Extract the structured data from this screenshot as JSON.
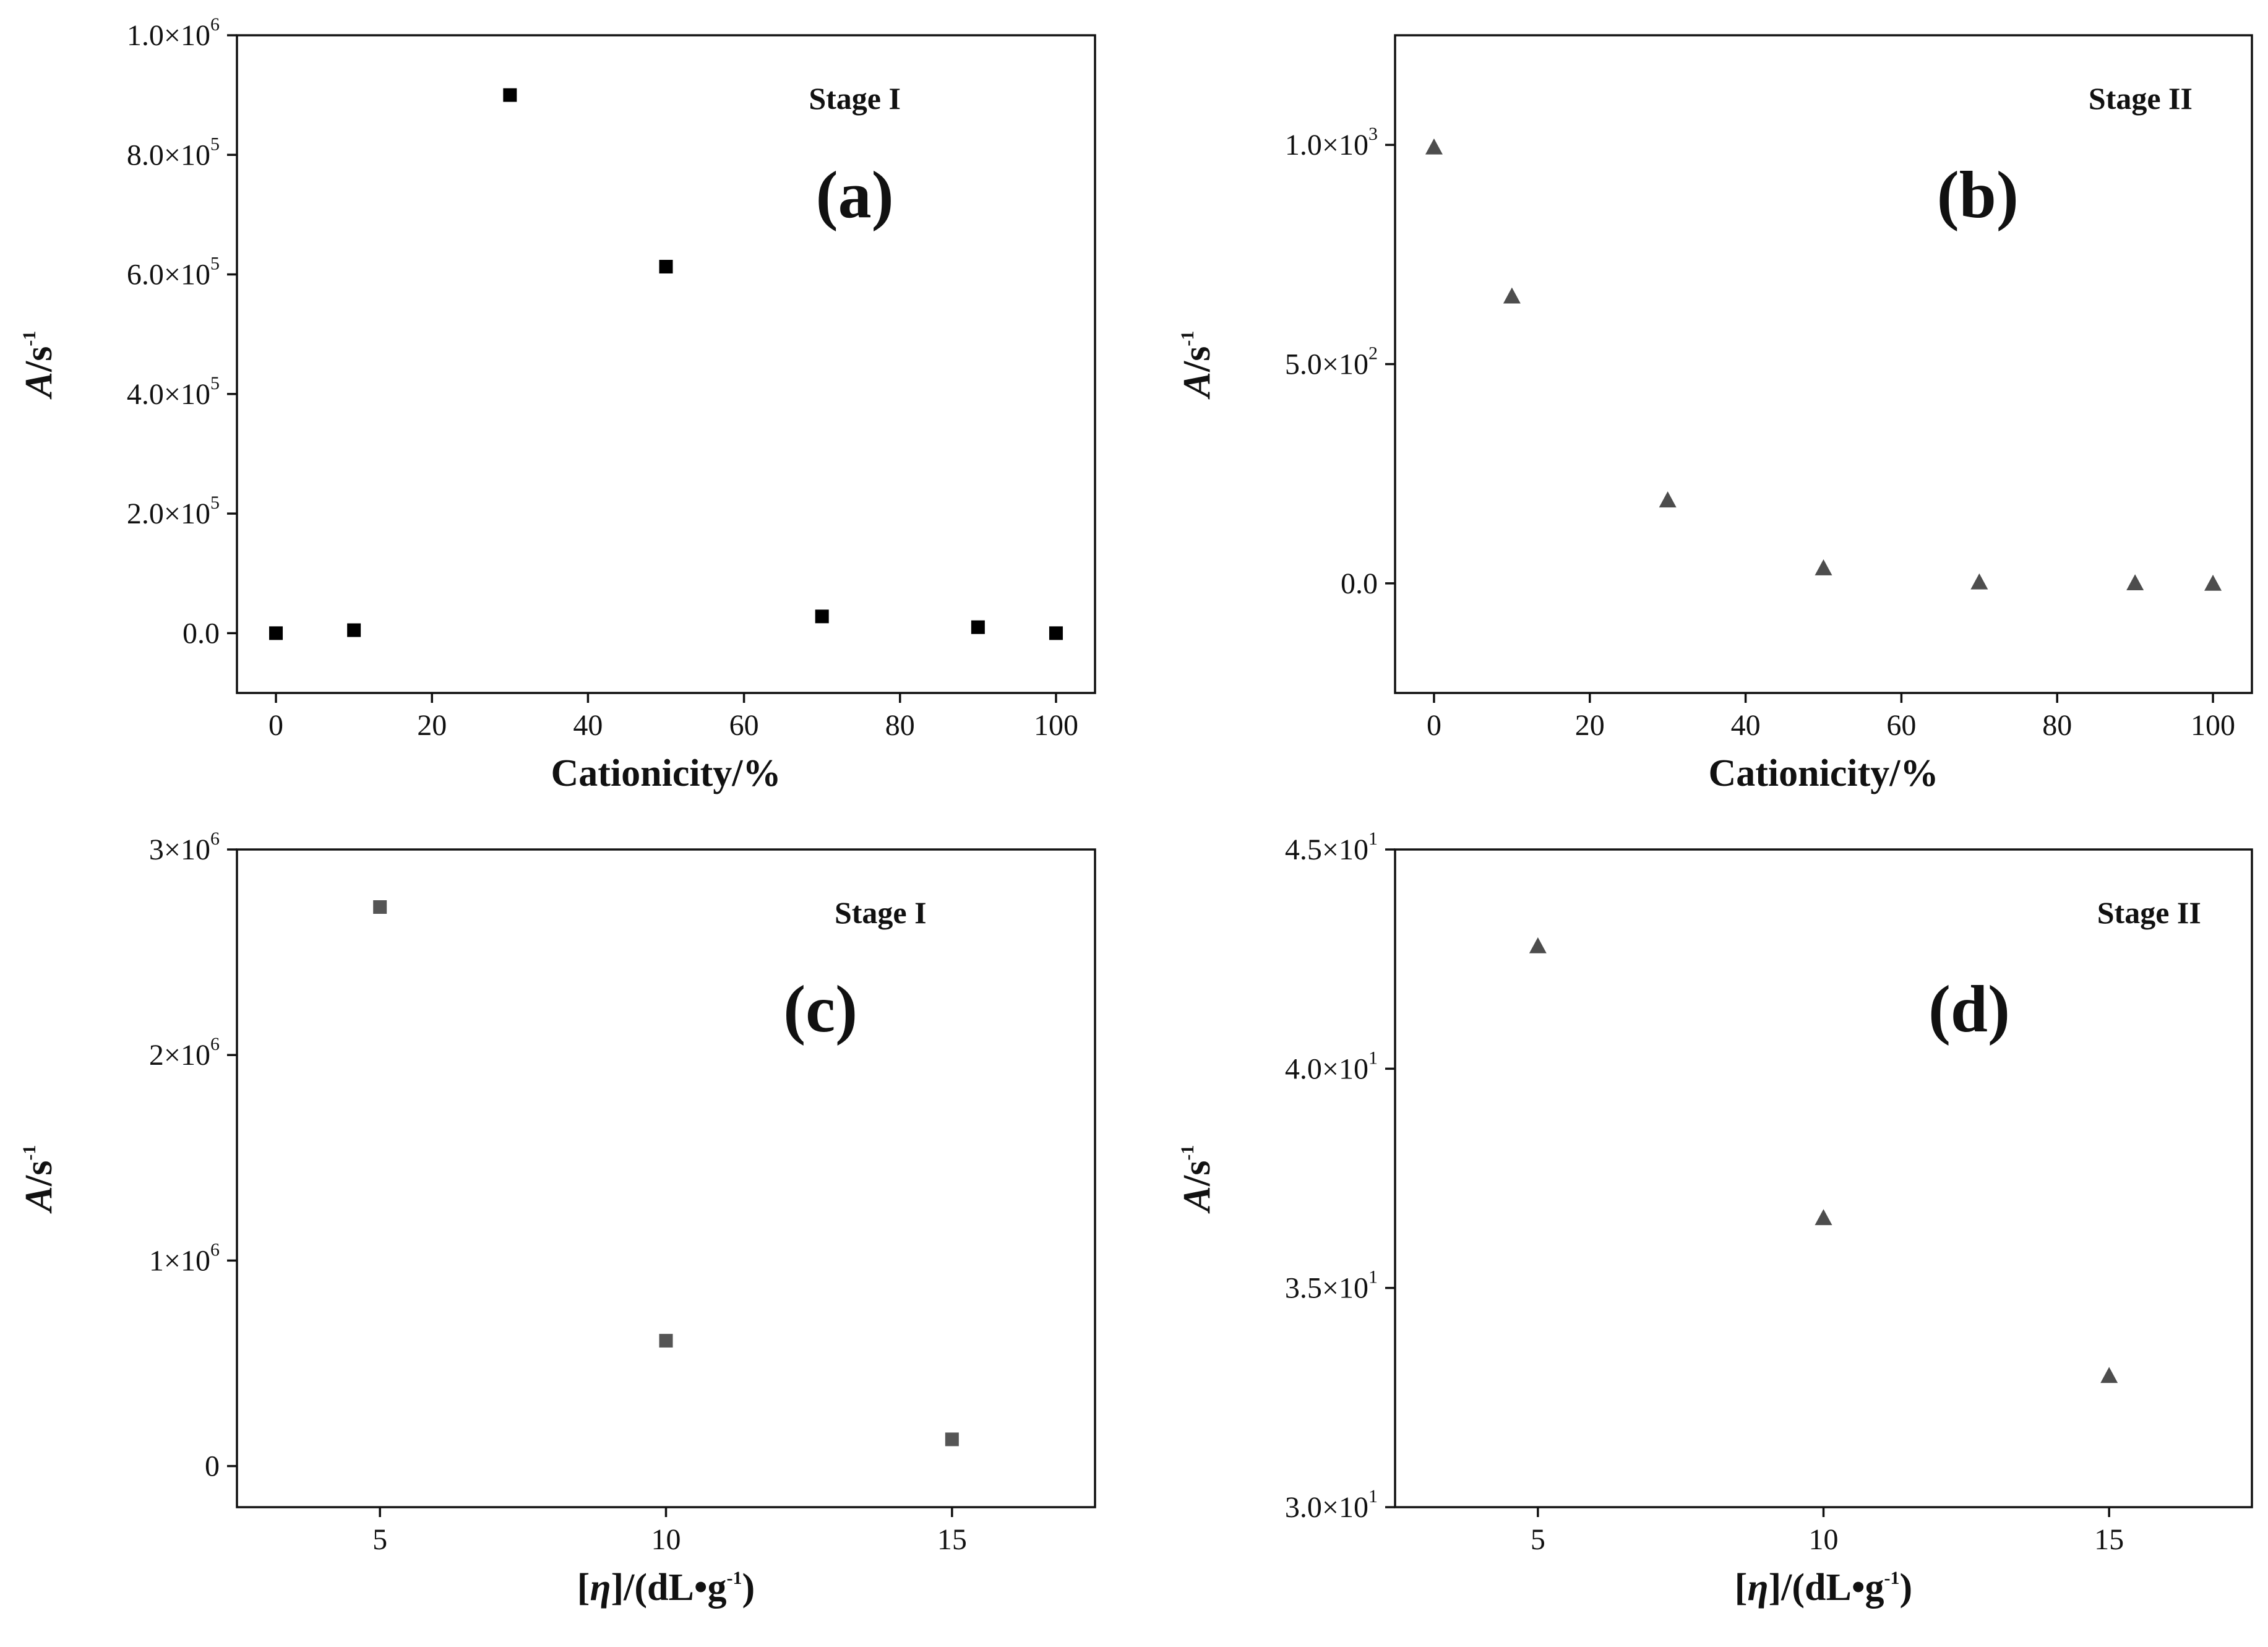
{
  "chart_data": [
    {
      "id": "a",
      "type": "scatter",
      "panel_label": "(a)",
      "annotation": "Stage I",
      "xlabel": "Cationicity/%",
      "ylabel_italic": "A",
      "ylabel_unit": "/s",
      "ylabel_exp": "-1",
      "xlim": [
        -5,
        105
      ],
      "ylim": [
        -100000,
        1000000
      ],
      "xticks": [
        0,
        20,
        40,
        60,
        80,
        100
      ],
      "yticks": [
        {
          "value": 0,
          "mantissa": "0.0",
          "exp": ""
        },
        {
          "value": 200000,
          "mantissa": "2.0×10",
          "exp": "5"
        },
        {
          "value": 400000,
          "mantissa": "4.0×10",
          "exp": "5"
        },
        {
          "value": 600000,
          "mantissa": "6.0×10",
          "exp": "5"
        },
        {
          "value": 800000,
          "mantissa": "8.0×10",
          "exp": "5"
        },
        {
          "value": 1000000,
          "mantissa": "1.0×10",
          "exp": "6"
        }
      ],
      "marker": "square",
      "color": "#000000",
      "points": [
        {
          "x": 0,
          "y": 0
        },
        {
          "x": 10,
          "y": 5000
        },
        {
          "x": 30,
          "y": 900000
        },
        {
          "x": 50,
          "y": 613000
        },
        {
          "x": 70,
          "y": 28000
        },
        {
          "x": 90,
          "y": 10000
        },
        {
          "x": 100,
          "y": 0
        }
      ]
    },
    {
      "id": "b",
      "type": "scatter",
      "panel_label": "(b)",
      "annotation": "Stage II",
      "xlabel": "Cationicity/%",
      "ylabel_italic": "A",
      "ylabel_unit": "/s",
      "ylabel_exp": "-1",
      "xlim": [
        -5,
        105
      ],
      "ylim": [
        -250,
        1250
      ],
      "xticks": [
        0,
        20,
        40,
        60,
        80,
        100
      ],
      "yticks": [
        {
          "value": 0,
          "mantissa": "0.0",
          "exp": ""
        },
        {
          "value": 500,
          "mantissa": "5.0×10",
          "exp": "2"
        },
        {
          "value": 1000,
          "mantissa": "1.0×10",
          "exp": "3"
        }
      ],
      "marker": "triangle",
      "color": "#4d4d4d",
      "points": [
        {
          "x": 0,
          "y": 995
        },
        {
          "x": 10,
          "y": 655
        },
        {
          "x": 30,
          "y": 190
        },
        {
          "x": 50,
          "y": 35
        },
        {
          "x": 70,
          "y": 3
        },
        {
          "x": 90,
          "y": 1
        },
        {
          "x": 100,
          "y": 0
        }
      ]
    },
    {
      "id": "c",
      "type": "scatter",
      "panel_label": "(c)",
      "annotation": "Stage I",
      "xlabel_pre": "[",
      "xlabel_italic": "η",
      "xlabel_mid": "]/(dL•g",
      "xlabel_exp": "-1",
      "xlabel_post": ")",
      "ylabel_italic": "A",
      "ylabel_unit": "/s",
      "ylabel_exp": "-1",
      "xlim": [
        2.5,
        17.5
      ],
      "ylim": [
        -200000,
        3000000
      ],
      "xticks": [
        5,
        10,
        15
      ],
      "yticks": [
        {
          "value": 0,
          "mantissa": "0",
          "exp": ""
        },
        {
          "value": 1000000,
          "mantissa": "1×10",
          "exp": "6"
        },
        {
          "value": 2000000,
          "mantissa": "2×10",
          "exp": "6"
        },
        {
          "value": 3000000,
          "mantissa": "3×10",
          "exp": "6"
        }
      ],
      "marker": "square",
      "color": "#555555",
      "points": [
        {
          "x": 5,
          "y": 2720000
        },
        {
          "x": 10,
          "y": 610000
        },
        {
          "x": 15,
          "y": 130000
        }
      ]
    },
    {
      "id": "d",
      "type": "scatter",
      "panel_label": "(d)",
      "annotation": "Stage II",
      "xlabel_pre": "[",
      "xlabel_italic": "η",
      "xlabel_mid": "]/(dL•g",
      "xlabel_exp": "-1",
      "xlabel_post": ")",
      "ylabel_italic": "A",
      "ylabel_unit": "/s",
      "ylabel_exp": "-1",
      "xlim": [
        2.5,
        17.5
      ],
      "ylim": [
        30,
        45
      ],
      "xticks": [
        5,
        10,
        15
      ],
      "yticks": [
        {
          "value": 30,
          "mantissa": "3.0×10",
          "exp": "1"
        },
        {
          "value": 35,
          "mantissa": "3.5×10",
          "exp": "1"
        },
        {
          "value": 40,
          "mantissa": "4.0×10",
          "exp": "1"
        },
        {
          "value": 45,
          "mantissa": "4.5×10",
          "exp": "1"
        }
      ],
      "marker": "triangle",
      "color": "#4d4d4d",
      "points": [
        {
          "x": 5,
          "y": 42.8
        },
        {
          "x": 10,
          "y": 36.6
        },
        {
          "x": 15,
          "y": 33.0
        }
      ]
    }
  ]
}
